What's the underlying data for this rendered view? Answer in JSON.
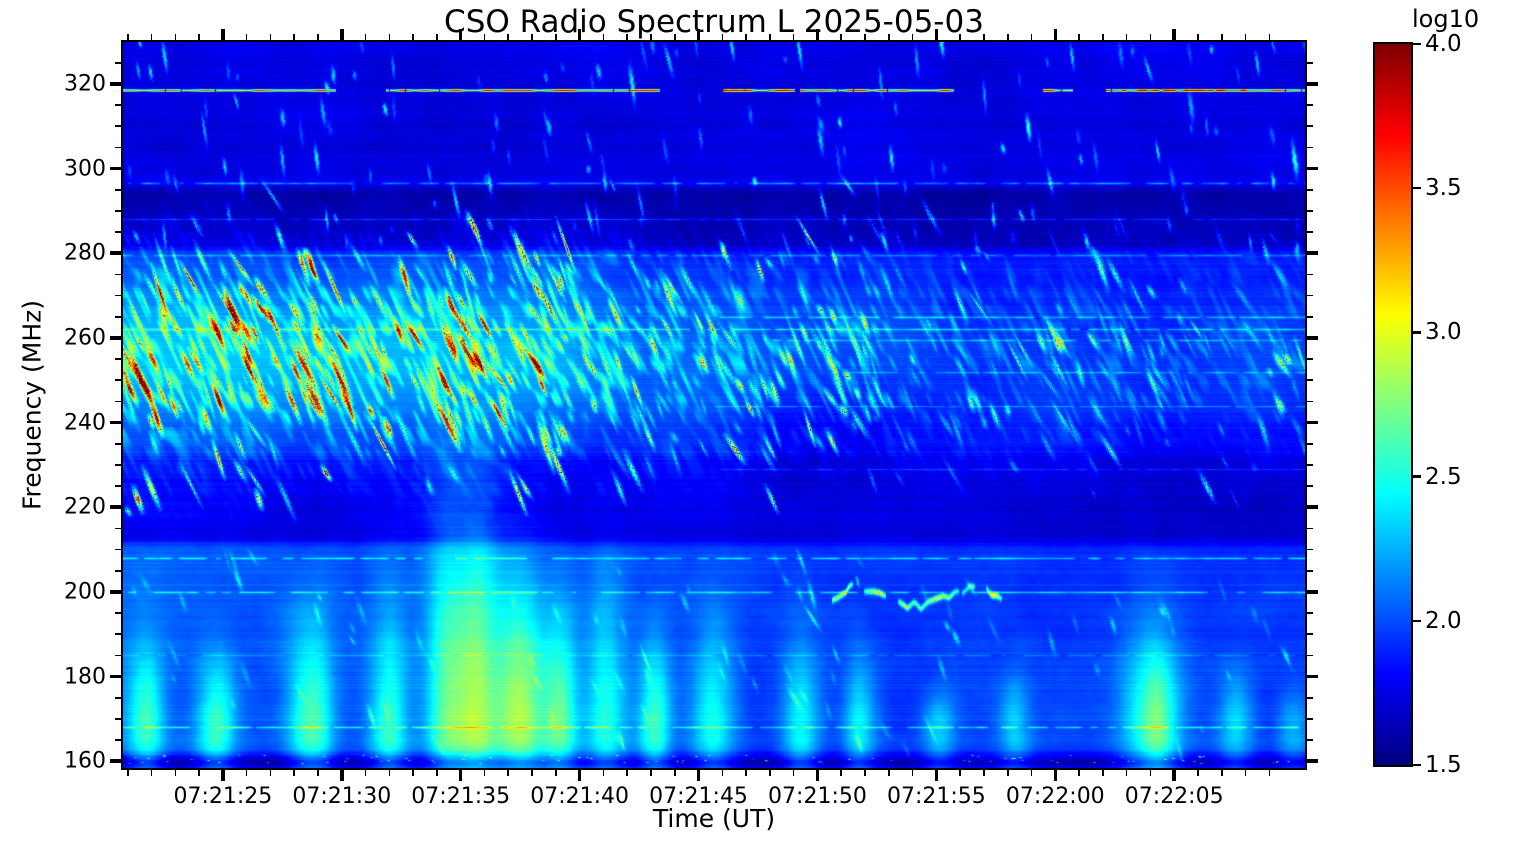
{
  "figure": {
    "background": "#ffffff",
    "text_color": "#000000"
  },
  "chart_data": {
    "type": "heatmap",
    "title": "CSO Radio Spectrum L 2025-05-03",
    "xlabel": "Time (UT)",
    "ylabel": "Frequency (MHz)",
    "x_axis": {
      "start_s": 20.8,
      "end_s": 70.5,
      "major_tick_s": [
        25,
        30,
        35,
        40,
        45,
        50,
        55,
        60,
        65
      ],
      "major_tick_labels": [
        "07:21:25",
        "07:21:30",
        "07:21:35",
        "07:21:40",
        "07:21:45",
        "07:21:50",
        "07:21:55",
        "07:22:00",
        "07:22:05"
      ],
      "minor_tick_interval_s": 1
    },
    "y_axis": {
      "min_mhz": 158.4,
      "max_mhz": 329.9,
      "major_ticks_mhz": [
        160,
        180,
        200,
        220,
        240,
        260,
        280,
        300,
        320
      ],
      "minor_tick_interval_mhz": 5
    },
    "colorbar": {
      "label": "log10",
      "min": 1.5,
      "max": 4.0,
      "ticks": [
        "1.5",
        "2.0",
        "2.5",
        "3.0",
        "3.5",
        "4.0"
      ],
      "colormap": "jet",
      "colormap_stops": [
        "#000080",
        "#0000ff",
        "#0080ff",
        "#00ffff",
        "#80ff80",
        "#ffff00",
        "#ff8000",
        "#ff0000",
        "#800000"
      ]
    },
    "features": [
      "Bright fine-structured emission band 230-290 MHz, strongest 07:21:21-07:21:40 with yellow/orange/red drifting streaks (log10 ~3.0-4.0)",
      "Moderate cyan streaky emission in same band 07:21:40-07:21:55, sparse cyan streaks afterwards",
      "Diffuse slow-drifting plumes 160-215 MHz across whole interval, yellow-green cores near 165-175 MHz (log10 ~2.5-3.0)",
      "Narrow satellite line near 318.5 MHz with yellow-green and dark-red segments",
      "Dark quiet band 281-296 MHz (log10 ~1.6)",
      "Thin horizontal RFI lines near 168, 200, 208, 262, 288, 296 MHz",
      "Cyan vertical wisps 296-330 MHz, denser in left half",
      "Wiggly yellow-green blob chain near 199 MHz around 07:21:50-07:21:57"
    ],
    "synthesis": {
      "seed": 20250503,
      "base_level": 1.78,
      "noise_amp": 0.16,
      "row_noise": 0.07,
      "bands": [
        [
          158,
          161.5,
          -0.22
        ],
        [
          161.5,
          212,
          0.18
        ],
        [
          212,
          233,
          -0.05
        ],
        [
          280,
          296.5,
          -0.2
        ],
        [
          296.5,
          330,
          -0.04
        ]
      ],
      "low_band_left_extra": 0.08,
      "type4": {
        "fc": 256,
        "fs": 16,
        "amps": [
          [
            0,
            0.92
          ],
          [
            0.36,
            0.9
          ],
          [
            0.44,
            0.55
          ],
          [
            0.62,
            0.5
          ],
          [
            0.7,
            0.33
          ],
          [
            1,
            0.3
          ]
        ],
        "streak_groups": [
          [
            0.0,
            0.38,
            250,
            0.5,
            1.75
          ],
          [
            0.36,
            0.64,
            175,
            0.35,
            1.1
          ],
          [
            0.62,
            1.0,
            150,
            0.25,
            0.78
          ]
        ],
        "hot_fraction": 0.07
      },
      "top_wisps": [
        280,
        330,
        150,
        0.25,
        0.8
      ],
      "low_streaks": [
        162,
        210,
        85,
        0.15,
        0.5
      ],
      "plumes": [
        [
          0.019,
          0.011,
          195,
          0.6
        ],
        [
          0.078,
          0.012,
          190,
          0.62
        ],
        [
          0.158,
          0.013,
          200,
          0.68
        ],
        [
          0.226,
          0.012,
          205,
          0.6
        ],
        [
          0.289,
          0.02,
          233,
          0.95
        ],
        [
          0.336,
          0.014,
          215,
          0.7
        ],
        [
          0.37,
          0.011,
          205,
          0.6
        ],
        [
          0.408,
          0.012,
          215,
          0.65
        ],
        [
          0.45,
          0.01,
          195,
          0.5
        ],
        [
          0.498,
          0.013,
          200,
          0.62
        ],
        [
          0.573,
          0.012,
          195,
          0.55
        ],
        [
          0.625,
          0.011,
          190,
          0.5
        ],
        [
          0.69,
          0.01,
          180,
          0.32
        ],
        [
          0.755,
          0.01,
          185,
          0.3
        ],
        [
          0.869,
          0.017,
          198,
          0.82
        ],
        [
          0.94,
          0.011,
          185,
          0.45
        ],
        [
          0.99,
          0.009,
          180,
          0.35
        ]
      ],
      "worm": {
        "t0": 0.6,
        "t1": 0.745,
        "f": 199,
        "amp": 1.0
      },
      "dark_patches": [
        [
          0.59,
          0.05,
          237,
          14,
          -0.13
        ],
        [
          0.88,
          0.1,
          224,
          10,
          -0.08
        ]
      ],
      "rfi_lines": [
        [
          296.5,
          0.4,
          0,
          1
        ],
        [
          288,
          0.3,
          0,
          1
        ],
        [
          279.5,
          0.28,
          0,
          1
        ],
        [
          265,
          0.38,
          0.5,
          1
        ],
        [
          262,
          0.45,
          0,
          1
        ],
        [
          259.5,
          0.33,
          0.55,
          1
        ],
        [
          252,
          0.25,
          0.6,
          1
        ],
        [
          244,
          0.22,
          0.5,
          1
        ],
        [
          229,
          0.2,
          0.5,
          1
        ],
        [
          208,
          0.42,
          0,
          1
        ],
        [
          200,
          0.38,
          0,
          1
        ],
        [
          185,
          0.2,
          0,
          1
        ],
        [
          168,
          0.4,
          0,
          1
        ]
      ],
      "sat_line": {
        "f": 318.5,
        "segments": [
          [
            0,
            0.18
          ],
          [
            0.2225,
            0.4543
          ],
          [
            0.5076,
            0.5685
          ],
          [
            0.5728,
            0.7022
          ],
          [
            0.7783,
            0.8037
          ],
          [
            0.8316,
            1
          ]
        ],
        "red_segments": [
          [
            0.5076,
            0.5685
          ],
          [
            0.8316,
            0.95
          ]
        ]
      },
      "bottom_dots": {
        "n": 90,
        "f": 160.6,
        "amp": 0.8
      },
      "blobs": [
        [
          0.004,
          219,
          0.8
        ],
        [
          0.012,
          222,
          0.6
        ],
        [
          0.985,
          255,
          0.9
        ],
        [
          0.97,
          252,
          0.5
        ]
      ]
    }
  }
}
